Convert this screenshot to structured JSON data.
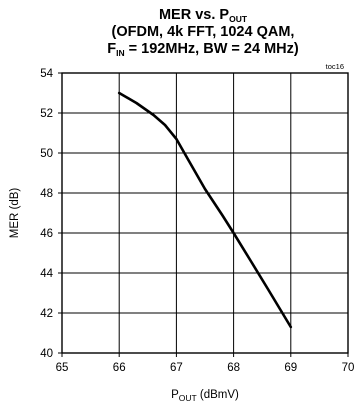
{
  "chart_data": {
    "type": "line",
    "title_lines": [
      {
        "parts": [
          {
            "text": "MER  vs.  P"
          },
          {
            "text": "OUT",
            "sub": true
          }
        ]
      },
      {
        "parts": [
          {
            "text": "(OFDM, 4k FFT, 1024 QAM,"
          }
        ]
      },
      {
        "parts": [
          {
            "text": "F"
          },
          {
            "text": "IN",
            "sub": true
          },
          {
            "text": " = 192MHz, BW = 24 MHz)"
          }
        ]
      }
    ],
    "tag": "toc16",
    "xlabel_parts": [
      {
        "text": "P"
      },
      {
        "text": "OUT",
        "sub": true
      },
      {
        "text": " (dBmV)"
      }
    ],
    "ylabel": "MER (dB)",
    "xlim": [
      65,
      70
    ],
    "ylim": [
      40,
      54
    ],
    "xticks": [
      65,
      66,
      67,
      68,
      69,
      70
    ],
    "yticks": [
      40,
      42,
      44,
      46,
      48,
      50,
      52,
      54
    ],
    "grid": true,
    "series": [
      {
        "color": "#000000",
        "x": [
          66.0,
          66.3,
          66.6,
          66.8,
          67.0,
          67.2,
          67.5,
          67.8,
          68.0,
          68.3,
          68.6,
          69.0
        ],
        "y": [
          53.0,
          52.5,
          51.9,
          51.4,
          50.7,
          49.7,
          48.2,
          46.9,
          46.0,
          44.6,
          43.2,
          41.3
        ]
      }
    ]
  }
}
